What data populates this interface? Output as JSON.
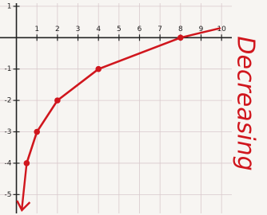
{
  "chart_data": {
    "type": "line",
    "annotation": "Decreasing",
    "x": [
      0.5,
      1,
      2,
      4,
      8
    ],
    "series": [
      {
        "color": "#d0161d",
        "values": [
          -4,
          -3,
          -2,
          -1,
          0
        ]
      }
    ],
    "xlim": [
      -0.8,
      10.5
    ],
    "ylim": [
      -5.6,
      1.2
    ],
    "xticks": [
      1,
      2,
      3,
      4,
      5,
      6,
      7,
      8,
      9,
      10
    ],
    "yticks": [
      1,
      -1,
      -2,
      -3,
      -4,
      -5
    ],
    "grid": true
  }
}
